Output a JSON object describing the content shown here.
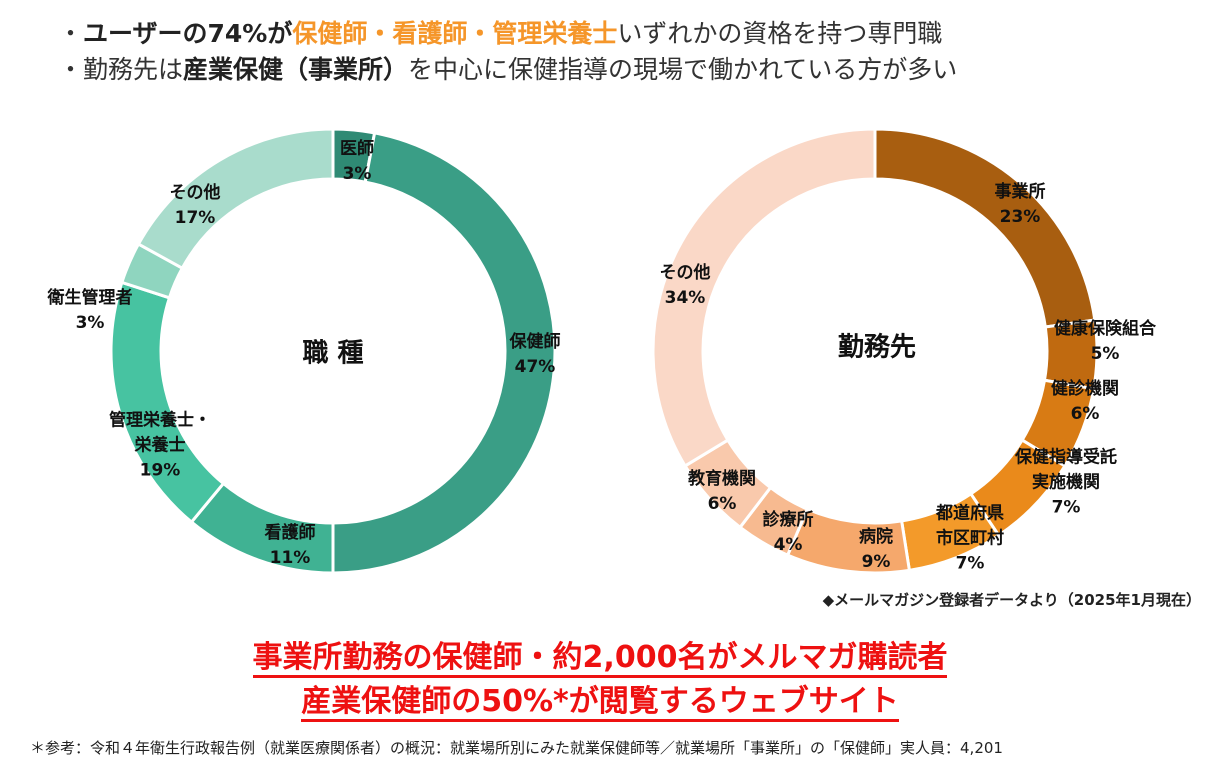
{
  "header": {
    "line1": {
      "prefix": "・",
      "bold": "ユーザーの74%が",
      "orange": "保健師・看護師・管理栄養士",
      "rest": "いずれかの資格を持つ専門職"
    },
    "line2": {
      "prefix": "・勤務先は",
      "bold": "産業保健（事業所）",
      "rest": "を中心に保健指導の現場で働かれている方が多い"
    }
  },
  "chart_data": [
    {
      "type": "pie",
      "title": "職 種",
      "categories": [
        "医師",
        "保健師",
        "看護師",
        "管理栄養士・栄養士",
        "衛生管理者",
        "その他"
      ],
      "label_lines": [
        [
          "医師",
          "3%"
        ],
        [
          "保健師",
          "47%"
        ],
        [
          "看護師",
          "11%"
        ],
        [
          "管理栄養士・",
          "栄養士",
          "19%"
        ],
        [
          "衛生管理者",
          "3%"
        ],
        [
          "その他",
          "17%"
        ]
      ],
      "values": [
        3,
        47,
        11,
        19,
        3,
        17
      ],
      "colors": [
        "#2f8a74",
        "#3a9e86",
        "#40b293",
        "#47c3a1",
        "#8fd5bf",
        "#a9dccc"
      ]
    },
    {
      "type": "pie",
      "title": "勤務先",
      "categories": [
        "事業所",
        "健康保険組合",
        "健診機関",
        "保健指導受託実施機関",
        "都道府県市区町村",
        "病院",
        "診療所",
        "教育機関",
        "その他"
      ],
      "label_lines": [
        [
          "事業所",
          "23%"
        ],
        [
          "健康保険組合",
          "5%"
        ],
        [
          "健診機関",
          "6%"
        ],
        [
          "保健指導受託",
          "実施機関",
          "7%"
        ],
        [
          "都道府県",
          "市区町村",
          "7%"
        ],
        [
          "病院",
          "9%"
        ],
        [
          "診療所",
          "4%"
        ],
        [
          "教育機関",
          "6%"
        ],
        [
          "その他",
          "34%"
        ]
      ],
      "values": [
        23,
        5,
        6,
        7,
        7,
        9,
        4,
        6,
        34
      ],
      "colors": [
        "#a85e10",
        "#c06a10",
        "#d87b14",
        "#ea8a1b",
        "#f39a2a",
        "#f5a86c",
        "#f7ba90",
        "#f9c9ac",
        "#fad8c7"
      ]
    }
  ],
  "source": "◆メールマガジン登録者データより（2025年1月現在）",
  "headline1": "事業所勤務の保健師・約2,000名がメルマガ購読者",
  "headline2": "産業保健師の50%*が閲覧するウェブサイト",
  "footnote": "＊参考：令和４年衛生行政報告例（就業医療関係者）の概況：就業場所別にみた就業保健師等／就業場所「事業所」の「保健師」実人員：4,201"
}
